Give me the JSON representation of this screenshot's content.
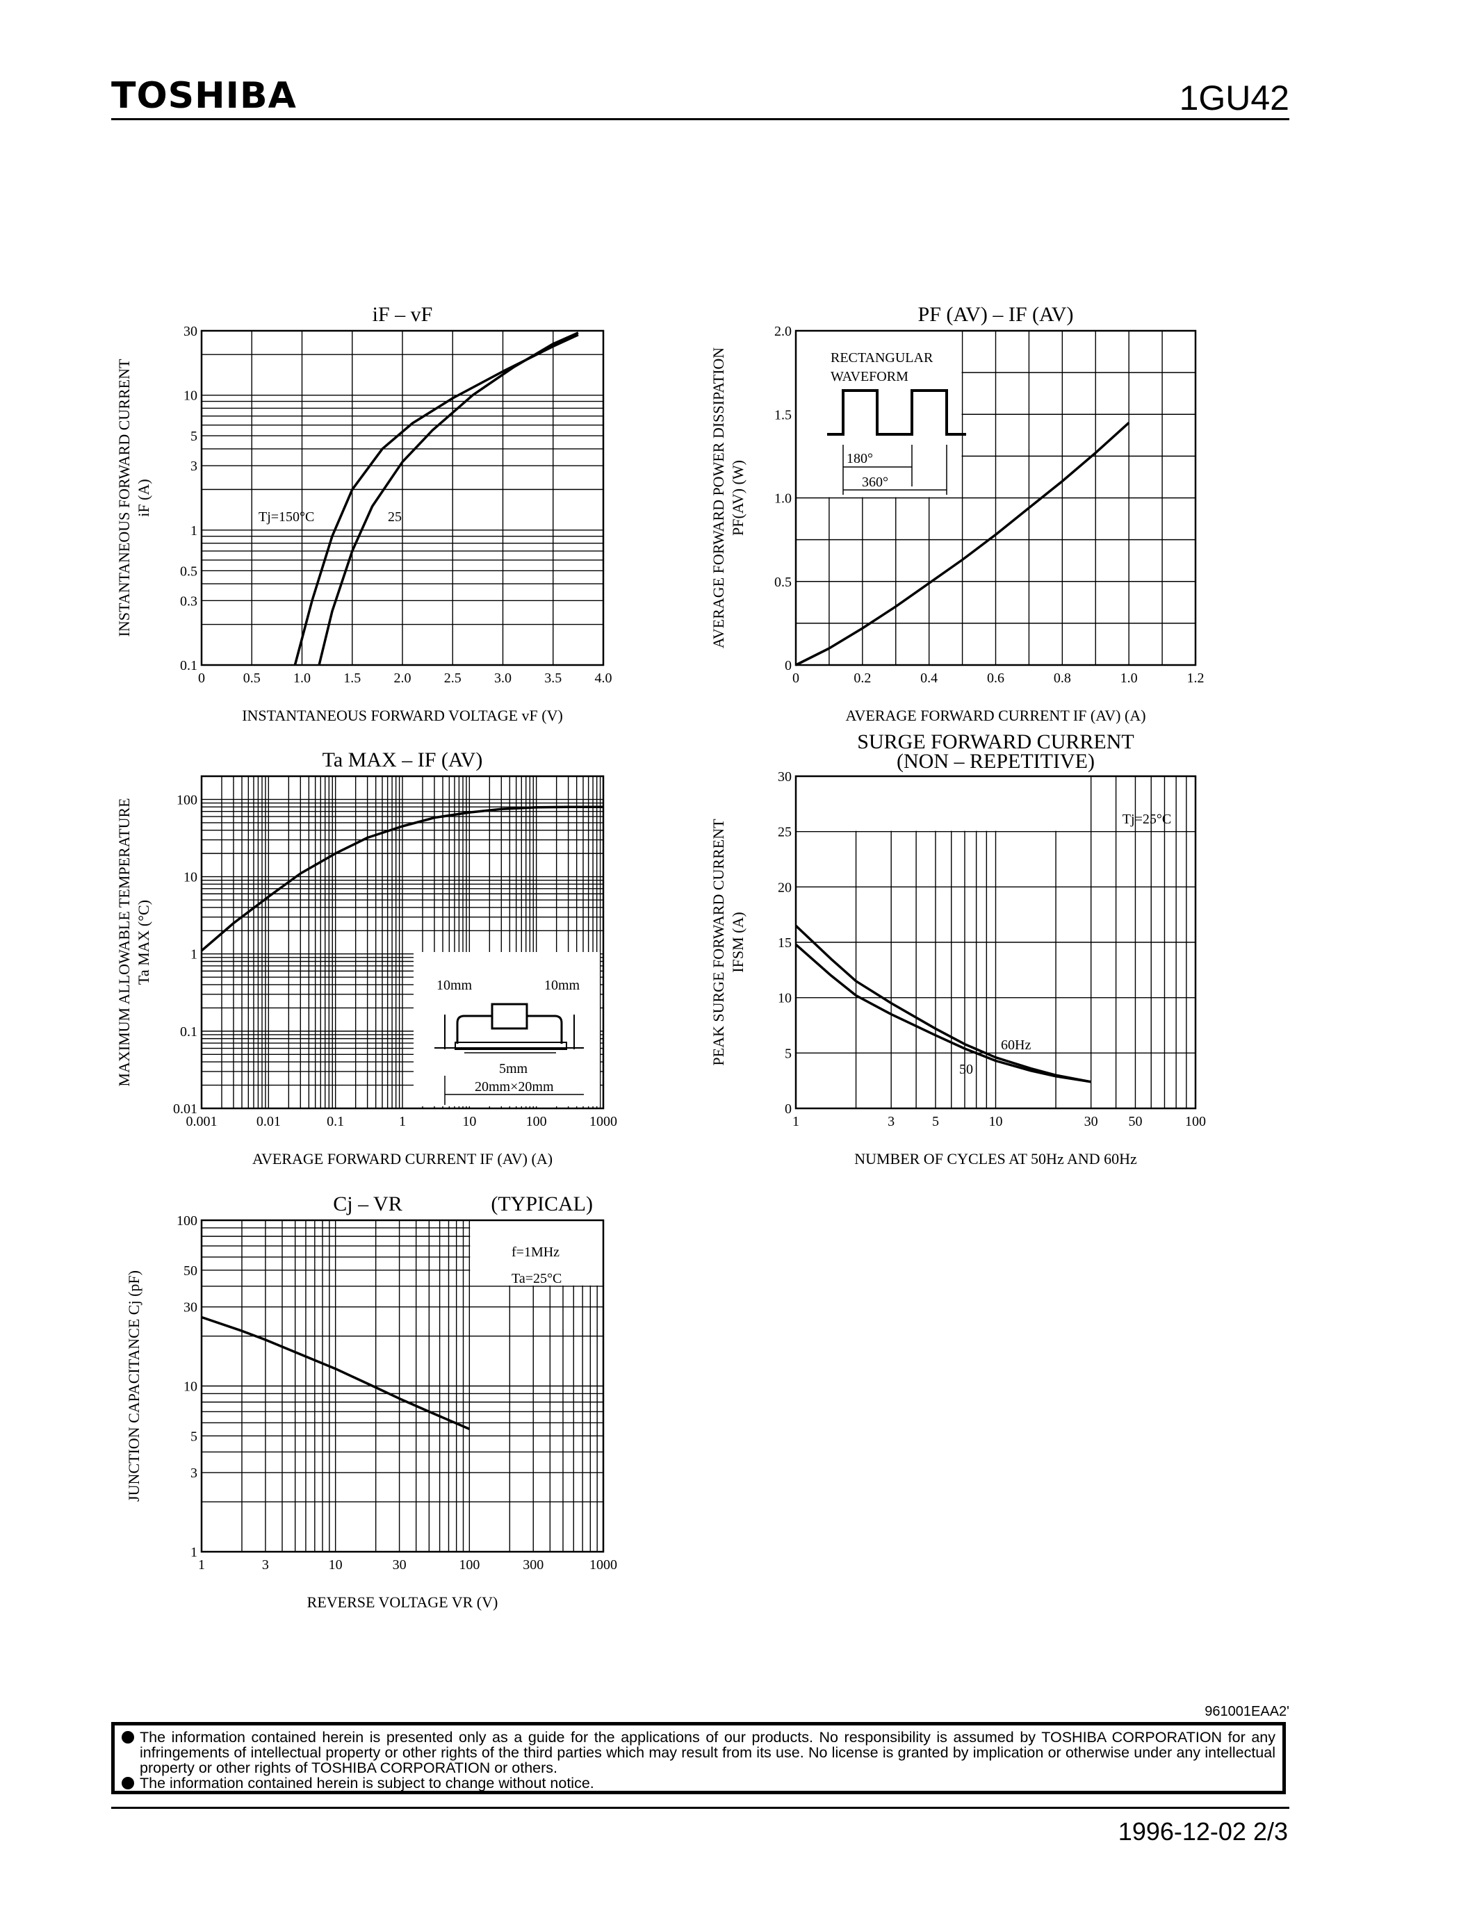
{
  "header": {
    "brand": "TOSHIBA",
    "part_number": "1GU42"
  },
  "footer": {
    "doc_code": "961001EAA2'",
    "notice_line1": "The information contained herein is presented only as a guide for the applications of our products. No responsibility is assumed by TOSHIBA CORPORATION for any infringements of intellectual property or other rights of the third parties which may result from its use. No license is granted by implication or otherwise under any intellectual property or other rights of TOSHIBA CORPORATION or others.",
    "notice_line2": "The information contained herein is subject to change without notice.",
    "date_page": "1996-12-02   2/3"
  },
  "chart_data": [
    {
      "id": "if_vf",
      "type": "line",
      "title": "iF – vF",
      "xlabel": "INSTANTANEOUS FORWARD VOLTAGE   vF   (V)",
      "ylabel": "INSTANTANEOUS FORWARD CURRENT",
      "ylabel2": "iF   (A)",
      "xlim": [
        0,
        4.0
      ],
      "ylim": [
        0.1,
        30
      ],
      "yscale": "log",
      "x_ticks": [
        "0",
        "0.5",
        "1.0",
        "1.5",
        "2.0",
        "2.5",
        "3.0",
        "3.5",
        "4.0"
      ],
      "y_ticks": [
        "0.1",
        "0.3",
        "0.5",
        "1",
        "3",
        "5",
        "10",
        "30"
      ],
      "annotations": [
        "Tj=150°C",
        "25"
      ],
      "series": [
        {
          "name": "Tj=150°C",
          "x": [
            0.93,
            1.1,
            1.3,
            1.5,
            1.8,
            2.1,
            2.5,
            3.0,
            3.5,
            3.75
          ],
          "y": [
            0.1,
            0.3,
            0.9,
            2.0,
            4.0,
            6.2,
            9.5,
            15,
            23,
            28
          ]
        },
        {
          "name": "25",
          "x": [
            1.17,
            1.3,
            1.5,
            1.7,
            2.0,
            2.3,
            2.7,
            3.1,
            3.5,
            3.75
          ],
          "y": [
            0.1,
            0.25,
            0.7,
            1.5,
            3.2,
            5.5,
            10,
            16,
            24,
            29
          ]
        }
      ]
    },
    {
      "id": "pf_if",
      "type": "line",
      "title": "PF (AV) – IF (AV)",
      "xlabel": "AVERAGE FORWARD CURRENT   IF (AV)   (A)",
      "ylabel": "AVERAGE FORWARD POWER DISSIPATION",
      "ylabel2": "PF(AV)   (W)",
      "xlim": [
        0,
        1.2
      ],
      "ylim": [
        0,
        2.0
      ],
      "x_ticks": [
        "0",
        "0.2",
        "0.4",
        "0.6",
        "0.8",
        "1.0",
        "1.2"
      ],
      "y_ticks": [
        "0",
        "0.5",
        "1.0",
        "1.5",
        "2.0"
      ],
      "inset_text": [
        "RECTANGULAR",
        "WAVEFORM",
        "180°",
        "360°"
      ],
      "series": [
        {
          "name": "",
          "x": [
            0,
            0.1,
            0.2,
            0.3,
            0.4,
            0.5,
            0.6,
            0.7,
            0.8,
            0.9,
            1.0
          ],
          "y": [
            0,
            0.1,
            0.22,
            0.35,
            0.49,
            0.63,
            0.78,
            0.94,
            1.1,
            1.27,
            1.45
          ]
        }
      ]
    },
    {
      "id": "ta_if",
      "type": "line",
      "title": "Ta MAX – IF (AV)",
      "xlabel": "AVERAGE FORWARD CURRENT   IF (AV)   (A)",
      "ylabel": "MAXIMUM ALLOWABLE TEMPERATURE",
      "ylabel2": "Ta  MAX   (°C)",
      "xscale": "log",
      "yscale": "log",
      "xlim": [
        0.001,
        1000
      ],
      "ylim": [
        0.01,
        200
      ],
      "x_ticks": [
        "0.001",
        "0.01",
        "0.1",
        "1",
        "10",
        "100",
        "1000"
      ],
      "y_ticks": [
        "0.01",
        "0.1",
        "1",
        "10",
        "100"
      ],
      "inset_text": [
        "10mm",
        "10mm",
        "5mm",
        "20mm×20mm"
      ],
      "series": [
        {
          "name": "",
          "x": [
            0.001,
            0.003,
            0.01,
            0.03,
            0.1,
            0.3,
            1,
            3,
            10,
            30,
            100,
            300,
            1000
          ],
          "y": [
            1.1,
            2.5,
            5.5,
            11,
            20,
            32,
            45,
            58,
            68,
            75,
            79,
            80,
            80
          ]
        }
      ]
    },
    {
      "id": "ifsm",
      "type": "line",
      "title": "SURGE FORWARD CURRENT",
      "subtitle": "(NON – REPETITIVE)",
      "xlabel": "NUMBER OF CYCLES AT 50Hz AND 60Hz",
      "ylabel": "PEAK SURGE FORWARD CURRENT",
      "ylabel2": "IFSM   (A)",
      "xscale": "log",
      "xlim": [
        1,
        100
      ],
      "ylim": [
        0,
        30
      ],
      "x_ticks": [
        "1",
        "3",
        "5",
        "10",
        "30",
        "50",
        "100"
      ],
      "y_ticks": [
        "0",
        "5",
        "10",
        "15",
        "20",
        "25",
        "30"
      ],
      "annotations": [
        "Tj=25°C",
        "60Hz",
        "50"
      ],
      "series": [
        {
          "name": "60Hz",
          "x": [
            1,
            1.5,
            2,
            3,
            5,
            7,
            10,
            15,
            20,
            30
          ],
          "y": [
            16.5,
            13.5,
            11.5,
            9.5,
            7.2,
            5.8,
            4.6,
            3.6,
            3.0,
            2.4
          ]
        },
        {
          "name": "50",
          "x": [
            1,
            1.5,
            2,
            3,
            5,
            7,
            10,
            15,
            20,
            30
          ],
          "y": [
            14.8,
            12.0,
            10.2,
            8.5,
            6.6,
            5.4,
            4.3,
            3.4,
            2.9,
            2.4
          ]
        }
      ]
    },
    {
      "id": "cj_vr",
      "type": "line",
      "title": "Cj – VR",
      "title_note": "(TYPICAL)",
      "xlabel": "REVERSE VOLTAGE   VR   (V)",
      "ylabel": "JUNCTION CAPACITANCE   Cj   (pF)",
      "xscale": "log",
      "yscale": "log",
      "xlim": [
        1,
        1000
      ],
      "ylim": [
        1,
        100
      ],
      "x_ticks": [
        "1",
        "3",
        "10",
        "30",
        "100",
        "300",
        "1000"
      ],
      "y_ticks": [
        "1",
        "3",
        "5",
        "10",
        "30",
        "50",
        "100"
      ],
      "annotations": [
        "f=1MHz",
        "Ta=25°C"
      ],
      "series": [
        {
          "name": "",
          "x": [
            1,
            2,
            3,
            5,
            10,
            20,
            30,
            50,
            100
          ],
          "y": [
            26,
            21.5,
            19,
            16,
            12.7,
            9.8,
            8.4,
            7.0,
            5.5
          ]
        }
      ]
    }
  ]
}
